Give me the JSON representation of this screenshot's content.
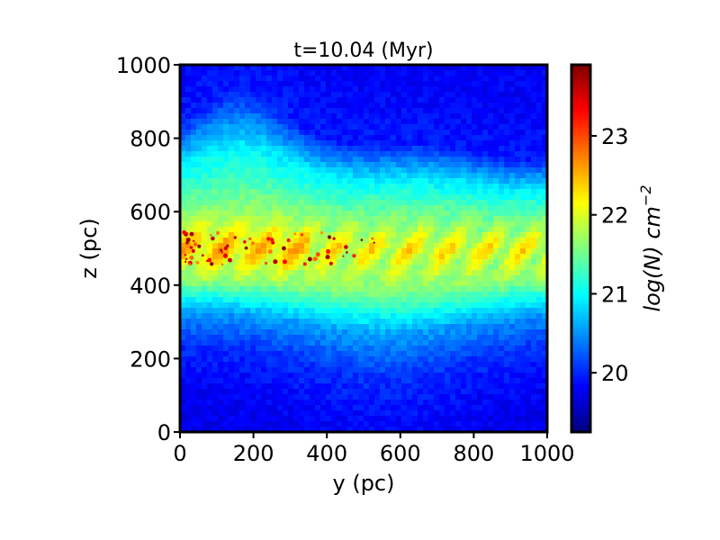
{
  "chart_data": {
    "type": "heatmap",
    "title": "t=10.04 (Myr)",
    "xlabel": "y (pc)",
    "ylabel": "z (pc)",
    "xlim": [
      0,
      1000
    ],
    "ylim": [
      0,
      1000
    ],
    "x_ticks": [
      "0",
      "200",
      "400",
      "600",
      "800",
      "1000"
    ],
    "y_ticks": [
      "0",
      "200",
      "400",
      "600",
      "800",
      "1000"
    ],
    "colorbar": {
      "label_main": "log(N) cm",
      "label_sup": "−2",
      "range": [
        19.25,
        23.9
      ],
      "ticks": [
        "20",
        "21",
        "22",
        "23"
      ],
      "colormap": "jet",
      "colors": [
        "#000080",
        "#0000ff",
        "#0080ff",
        "#00ffff",
        "#80ff80",
        "#ffff00",
        "#ff8000",
        "#ff0000",
        "#800000"
      ]
    },
    "field": {
      "disk_center_z": 500,
      "disk_half_thickness_core": 60,
      "profile_z": [
        0,
        100,
        200,
        300,
        400,
        500,
        600,
        700,
        800,
        900,
        1000
      ],
      "profile_logN": [
        19.75,
        19.85,
        20.05,
        20.55,
        21.6,
        22.1,
        21.5,
        20.9,
        19.95,
        19.85,
        19.8
      ],
      "peak_logN": 23.9
    }
  }
}
